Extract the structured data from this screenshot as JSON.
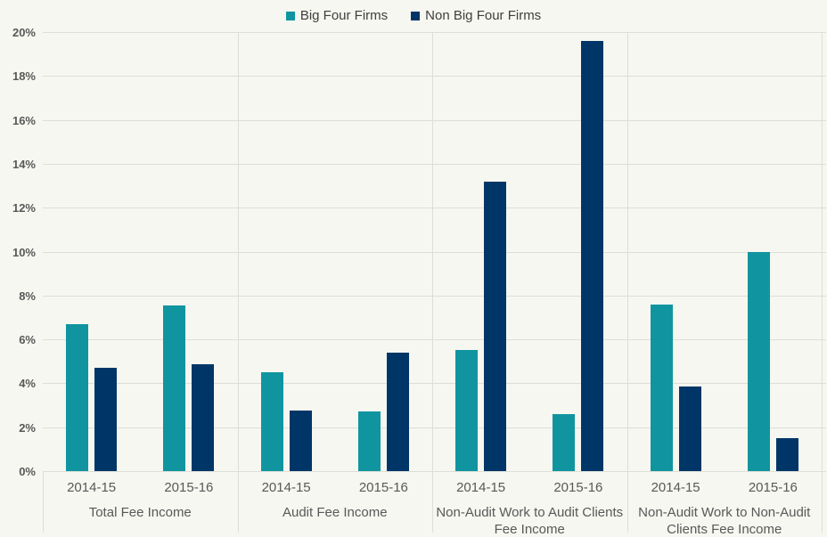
{
  "chart_data": {
    "type": "bar",
    "title": "",
    "unit": "%",
    "legend_position": "top-center",
    "grid": "horizontal-and-group-separators",
    "y_axis": {
      "min": 0,
      "max": 20,
      "step": 2,
      "tick_suffix": "%"
    },
    "series": [
      {
        "name": "Big Four Firms",
        "color": "#1095a0"
      },
      {
        "name": "Non Big Four Firms",
        "color": "#003667"
      }
    ],
    "groups": [
      {
        "label": "Total Fee Income",
        "periods": [
          {
            "label": "2014-15",
            "values": [
              6.7,
              4.7
            ]
          },
          {
            "label": "2015-16",
            "values": [
              7.55,
              4.85
            ]
          }
        ]
      },
      {
        "label": "Audit Fee Income",
        "periods": [
          {
            "label": "2014-15",
            "values": [
              4.5,
              2.75
            ]
          },
          {
            "label": "2015-16",
            "values": [
              2.7,
              5.4
            ]
          }
        ]
      },
      {
        "label": "Non-Audit Work to Audit Clients Fee Income",
        "periods": [
          {
            "label": "2014-15",
            "values": [
              5.5,
              13.2
            ]
          },
          {
            "label": "2015-16",
            "values": [
              2.6,
              19.6
            ]
          }
        ]
      },
      {
        "label": "Non-Audit Work to Non-Audit Clients Fee Income",
        "periods": [
          {
            "label": "2014-15",
            "values": [
              7.6,
              3.85
            ]
          },
          {
            "label": "2015-16",
            "values": [
              10.0,
              1.5
            ]
          }
        ]
      }
    ],
    "colors": {
      "background": "#f5f7f0",
      "gridline": "#dcded7",
      "axis_text": "#595959",
      "legend_text": "#404040"
    }
  }
}
